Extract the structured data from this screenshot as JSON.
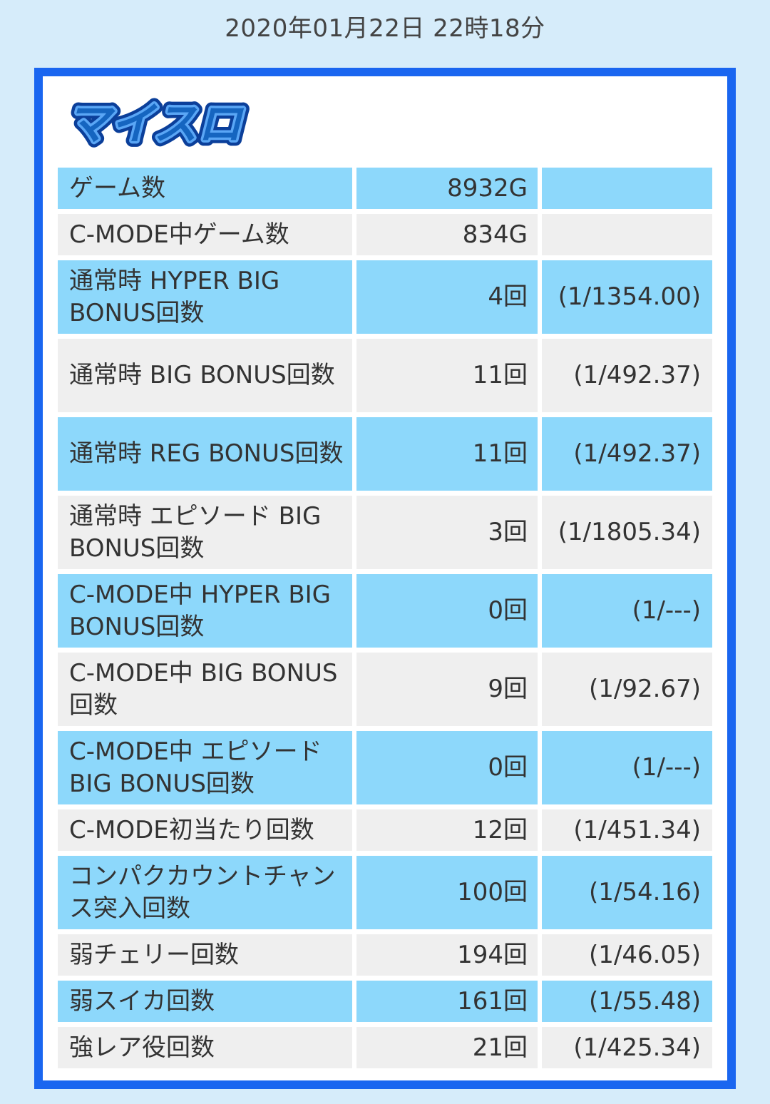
{
  "timestamp": "2020年01月22日 22時18分",
  "logo": {
    "text": "マイスロ"
  },
  "rows": [
    {
      "label": "ゲーム数",
      "count": "8932G",
      "ratio": ""
    },
    {
      "label": "C-MODE中ゲーム数",
      "count": "834G",
      "ratio": ""
    },
    {
      "label": "通常時 HYPER BIG BONUS回数",
      "count": "4回",
      "ratio": "(1/1354.00)"
    },
    {
      "label": "通常時 BIG BONUS回数",
      "count": "11回",
      "ratio": "(1/492.37)"
    },
    {
      "label": "通常時 REG BONUS回数",
      "count": "11回",
      "ratio": "(1/492.37)"
    },
    {
      "label": "通常時 エピソード BIG BONUS回数",
      "count": "3回",
      "ratio": "(1/1805.34)"
    },
    {
      "label": "C-MODE中 HYPER BIG BONUS回数",
      "count": "0回",
      "ratio": "(1/---)"
    },
    {
      "label": "C-MODE中 BIG BONUS回数",
      "count": "9回",
      "ratio": "(1/92.67)"
    },
    {
      "label": "C-MODE中 エピソード BIG BONUS回数",
      "count": "0回",
      "ratio": "(1/---)"
    },
    {
      "label": "C-MODE初当たり回数",
      "count": "12回",
      "ratio": "(1/451.34)"
    },
    {
      "label": "コンパクカウントチャンス突入回数",
      "count": "100回",
      "ratio": "(1/54.16)"
    },
    {
      "label": "弱チェリー回数",
      "count": "194回",
      "ratio": "(1/46.05)"
    },
    {
      "label": "弱スイカ回数",
      "count": "161回",
      "ratio": "(1/55.48)"
    },
    {
      "label": "強レア役回数",
      "count": "21回",
      "ratio": "(1/425.34)"
    }
  ],
  "colors": {
    "page_background": "#d6ecfa",
    "frame_border": "#1a66f0",
    "row_blue": "#8dd8fb",
    "row_gray": "#efefef",
    "logo_blue": "#1565c0"
  }
}
